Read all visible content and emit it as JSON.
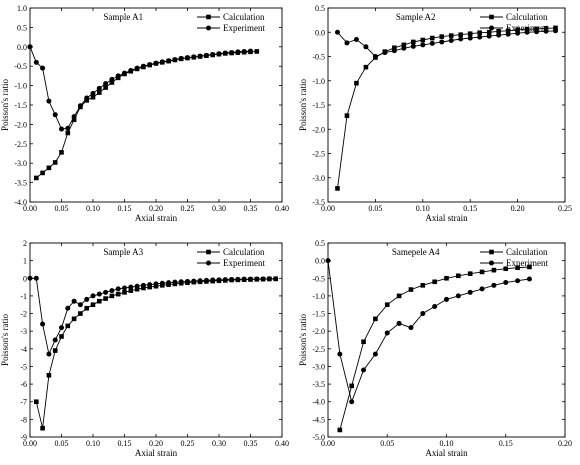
{
  "chart_data": [
    {
      "type": "line",
      "title": "Sample A1",
      "xlabel": "Axial strain",
      "ylabel": "Poisson's ratio",
      "xlim": [
        0,
        0.4
      ],
      "ylim": [
        -4.0,
        1.0
      ],
      "xticks": [
        "0.00",
        "0.05",
        "0.10",
        "0.15",
        "0.20",
        "0.25",
        "0.30",
        "0.35",
        "0.40"
      ],
      "yticks": [
        "-4.0",
        "-3.5",
        "-3.0",
        "-2.5",
        "-2.0",
        "-1.5",
        "-1.0",
        "-0.5",
        "0.0",
        "0.5",
        "1.0"
      ],
      "legend_position": "top-right",
      "series": [
        {
          "name": "Calculation",
          "marker": "square",
          "x": [
            0.01,
            0.02,
            0.03,
            0.04,
            0.05,
            0.06,
            0.07,
            0.08,
            0.09,
            0.1,
            0.11,
            0.12,
            0.13,
            0.14,
            0.15,
            0.16,
            0.17,
            0.18,
            0.19,
            0.2,
            0.21,
            0.22,
            0.23,
            0.24,
            0.25,
            0.26,
            0.27,
            0.28,
            0.29,
            0.3,
            0.31,
            0.32,
            0.33,
            0.34,
            0.35,
            0.36
          ],
          "y": [
            -3.38,
            -3.25,
            -3.12,
            -2.98,
            -2.72,
            -2.22,
            -1.88,
            -1.55,
            -1.38,
            -1.3,
            -1.18,
            -1.05,
            -0.92,
            -0.8,
            -0.7,
            -0.63,
            -0.57,
            -0.52,
            -0.47,
            -0.43,
            -0.4,
            -0.37,
            -0.34,
            -0.31,
            -0.29,
            -0.27,
            -0.25,
            -0.23,
            -0.21,
            -0.19,
            -0.17,
            -0.16,
            -0.15,
            -0.14,
            -0.13,
            -0.12
          ]
        },
        {
          "name": "Experiment",
          "marker": "circle",
          "x": [
            0.0,
            0.01,
            0.02,
            0.03,
            0.04,
            0.05,
            0.06,
            0.07,
            0.08,
            0.09,
            0.1,
            0.11,
            0.12,
            0.13,
            0.14,
            0.15,
            0.16,
            0.17,
            0.18,
            0.19,
            0.2,
            0.21,
            0.22,
            0.23,
            0.24,
            0.25,
            0.26,
            0.27,
            0.28,
            0.29,
            0.3,
            0.31,
            0.32,
            0.33,
            0.34,
            0.35
          ],
          "y": [
            0.0,
            -0.4,
            -0.55,
            -1.4,
            -1.75,
            -2.12,
            -2.1,
            -1.8,
            -1.52,
            -1.32,
            -1.2,
            -1.07,
            -0.95,
            -0.84,
            -0.75,
            -0.68,
            -0.61,
            -0.55,
            -0.5,
            -0.46,
            -0.42,
            -0.39,
            -0.36,
            -0.33,
            -0.3,
            -0.28,
            -0.26,
            -0.24,
            -0.22,
            -0.2,
            -0.18,
            -0.16,
            -0.15,
            -0.13,
            -0.12,
            -0.11
          ]
        }
      ]
    },
    {
      "type": "line",
      "title": "Sample A2",
      "xlabel": "Axial strain",
      "ylabel": "Poisson's ratio",
      "xlim": [
        0,
        0.25
      ],
      "ylim": [
        -3.5,
        0.5
      ],
      "xticks": [
        "0.00",
        "0.05",
        "0.10",
        "0.15",
        "0.20",
        "0.25"
      ],
      "yticks": [
        "-3.5",
        "-3.0",
        "-2.5",
        "-2.0",
        "-1.5",
        "-1.0",
        "-0.5",
        "0.0",
        "0.5"
      ],
      "legend_position": "top-right",
      "series": [
        {
          "name": "Calculation",
          "marker": "square",
          "x": [
            0.01,
            0.02,
            0.03,
            0.04,
            0.05,
            0.06,
            0.07,
            0.08,
            0.09,
            0.1,
            0.11,
            0.12,
            0.13,
            0.14,
            0.15,
            0.16,
            0.17,
            0.18,
            0.19,
            0.2,
            0.21,
            0.22,
            0.23,
            0.24
          ],
          "y": [
            -3.22,
            -1.72,
            -1.05,
            -0.72,
            -0.52,
            -0.4,
            -0.32,
            -0.26,
            -0.2,
            -0.16,
            -0.12,
            -0.09,
            -0.07,
            -0.05,
            -0.03,
            -0.01,
            0.0,
            0.02,
            0.03,
            0.05,
            0.06,
            0.07,
            0.08,
            0.09
          ]
        },
        {
          "name": "Experiment",
          "marker": "circle",
          "x": [
            0.01,
            0.02,
            0.03,
            0.04,
            0.05,
            0.06,
            0.07,
            0.08,
            0.09,
            0.1,
            0.11,
            0.12,
            0.13,
            0.14,
            0.15,
            0.16,
            0.17,
            0.18,
            0.19,
            0.2,
            0.21,
            0.22,
            0.23,
            0.24
          ],
          "y": [
            0.0,
            -0.22,
            -0.15,
            -0.3,
            -0.5,
            -0.42,
            -0.38,
            -0.33,
            -0.29,
            -0.26,
            -0.23,
            -0.2,
            -0.17,
            -0.14,
            -0.12,
            -0.1,
            -0.08,
            -0.06,
            -0.04,
            -0.02,
            0.0,
            0.01,
            0.02,
            0.03
          ]
        }
      ]
    },
    {
      "type": "line",
      "title": "Sample A3",
      "xlabel": "Axial strain",
      "ylabel": "Poisson's ratio",
      "xlim": [
        0,
        0.4
      ],
      "ylim": [
        -9,
        2
      ],
      "xticks": [
        "0.00",
        "0.05",
        "0.10",
        "0.15",
        "0.20",
        "0.25",
        "0.30",
        "0.35",
        "0.40"
      ],
      "yticks": [
        "-9",
        "-8",
        "-7",
        "-6",
        "-5",
        "-4",
        "-3",
        "-2",
        "-1",
        "0",
        "1",
        "2"
      ],
      "legend_position": "top-right",
      "series": [
        {
          "name": "Calculation",
          "marker": "square",
          "x": [
            0.01,
            0.02,
            0.03,
            0.04,
            0.05,
            0.06,
            0.07,
            0.08,
            0.09,
            0.1,
            0.11,
            0.12,
            0.13,
            0.14,
            0.15,
            0.16,
            0.17,
            0.18,
            0.19,
            0.2,
            0.21,
            0.22,
            0.23,
            0.24,
            0.25,
            0.26,
            0.27,
            0.28,
            0.29,
            0.3,
            0.31,
            0.32,
            0.33,
            0.34,
            0.35,
            0.36,
            0.37,
            0.38,
            0.39
          ],
          "y": [
            -7.0,
            -8.5,
            -5.5,
            -4.1,
            -3.3,
            -2.7,
            -2.3,
            -2.0,
            -1.7,
            -1.5,
            -1.3,
            -1.15,
            -1.0,
            -0.9,
            -0.8,
            -0.7,
            -0.62,
            -0.55,
            -0.5,
            -0.45,
            -0.4,
            -0.36,
            -0.32,
            -0.28,
            -0.25,
            -0.22,
            -0.2,
            -0.18,
            -0.16,
            -0.14,
            -0.12,
            -0.1,
            -0.09,
            -0.08,
            -0.07,
            -0.06,
            -0.05,
            -0.04,
            -0.03
          ]
        },
        {
          "name": "Experiment",
          "marker": "circle",
          "x": [
            0.0,
            0.01,
            0.02,
            0.03,
            0.04,
            0.05,
            0.06,
            0.07,
            0.08,
            0.09,
            0.1,
            0.11,
            0.12,
            0.13,
            0.14,
            0.15,
            0.16,
            0.17,
            0.18,
            0.19,
            0.2,
            0.21,
            0.22,
            0.23,
            0.24,
            0.25,
            0.26,
            0.27,
            0.28,
            0.29,
            0.3,
            0.31,
            0.32,
            0.33,
            0.34,
            0.35,
            0.36,
            0.37,
            0.38,
            0.39
          ],
          "y": [
            0.0,
            0.0,
            -2.6,
            -4.3,
            -3.5,
            -2.8,
            -1.7,
            -1.3,
            -1.5,
            -1.2,
            -1.0,
            -0.9,
            -0.8,
            -0.7,
            -0.6,
            -0.55,
            -0.5,
            -0.45,
            -0.4,
            -0.36,
            -0.32,
            -0.28,
            -0.25,
            -0.22,
            -0.2,
            -0.18,
            -0.16,
            -0.14,
            -0.12,
            -0.1,
            -0.09,
            -0.08,
            -0.07,
            -0.06,
            -0.05,
            -0.05,
            -0.04,
            -0.04,
            -0.03,
            -0.03
          ]
        }
      ]
    },
    {
      "type": "line",
      "title": "Samepele A4",
      "xlabel": "Axial strain",
      "ylabel": "Poisson's ratio",
      "xlim": [
        0,
        0.2
      ],
      "ylim": [
        -5.0,
        0.5
      ],
      "xticks": [
        "0.00",
        "0.05",
        "0.10",
        "0.15",
        "0.20"
      ],
      "yticks": [
        "-5.0",
        "-4.5",
        "-4.0",
        "-3.5",
        "-3.0",
        "-2.5",
        "-2.0",
        "-1.5",
        "-1.0",
        "-0.5",
        "0.0",
        "0.5"
      ],
      "legend_position": "top-right",
      "series": [
        {
          "name": "Calculation",
          "marker": "square",
          "x": [
            0.01,
            0.02,
            0.03,
            0.04,
            0.05,
            0.06,
            0.07,
            0.08,
            0.09,
            0.1,
            0.11,
            0.12,
            0.13,
            0.14,
            0.15,
            0.16,
            0.17
          ],
          "y": [
            -4.8,
            -3.55,
            -2.3,
            -1.65,
            -1.25,
            -1.0,
            -0.82,
            -0.7,
            -0.6,
            -0.5,
            -0.43,
            -0.37,
            -0.32,
            -0.27,
            -0.23,
            -0.2,
            -0.18
          ]
        },
        {
          "name": "Experiment",
          "marker": "circle",
          "x": [
            0.0,
            0.01,
            0.02,
            0.03,
            0.04,
            0.05,
            0.06,
            0.07,
            0.08,
            0.09,
            0.1,
            0.11,
            0.12,
            0.13,
            0.14,
            0.15,
            0.16,
            0.17
          ],
          "y": [
            0.0,
            -2.65,
            -4.0,
            -3.1,
            -2.65,
            -2.05,
            -1.78,
            -1.9,
            -1.5,
            -1.3,
            -1.1,
            -1.0,
            -0.9,
            -0.8,
            -0.7,
            -0.62,
            -0.57,
            -0.52
          ]
        }
      ]
    }
  ]
}
